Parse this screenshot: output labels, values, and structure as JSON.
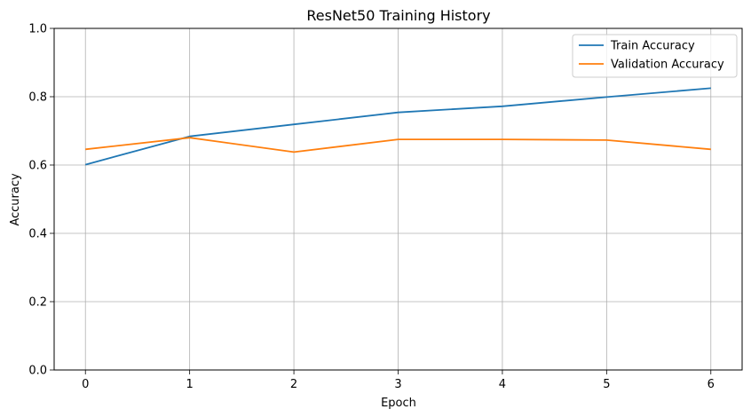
{
  "chart_data": {
    "type": "line",
    "title": "ResNet50 Training History",
    "xlabel": "Epoch",
    "ylabel": "Accuracy",
    "x": [
      0,
      1,
      2,
      3,
      4,
      5,
      6
    ],
    "xlim": [
      -0.3,
      6.3
    ],
    "ylim": [
      0,
      1
    ],
    "xticks": [
      "0",
      "1",
      "2",
      "3",
      "4",
      "5",
      "6"
    ],
    "yticks": [
      "0.0",
      "0.2",
      "0.4",
      "0.6",
      "0.8",
      "1.0"
    ],
    "grid": true,
    "legend_position": "top-right",
    "series": [
      {
        "name": "Train Accuracy",
        "color": "#1f77b4",
        "values": [
          0.601,
          0.684,
          0.719,
          0.754,
          0.772,
          0.799,
          0.825
        ]
      },
      {
        "name": "Validation Accuracy",
        "color": "#ff7f0e",
        "values": [
          0.646,
          0.68,
          0.638,
          0.675,
          0.675,
          0.673,
          0.646
        ]
      }
    ]
  }
}
